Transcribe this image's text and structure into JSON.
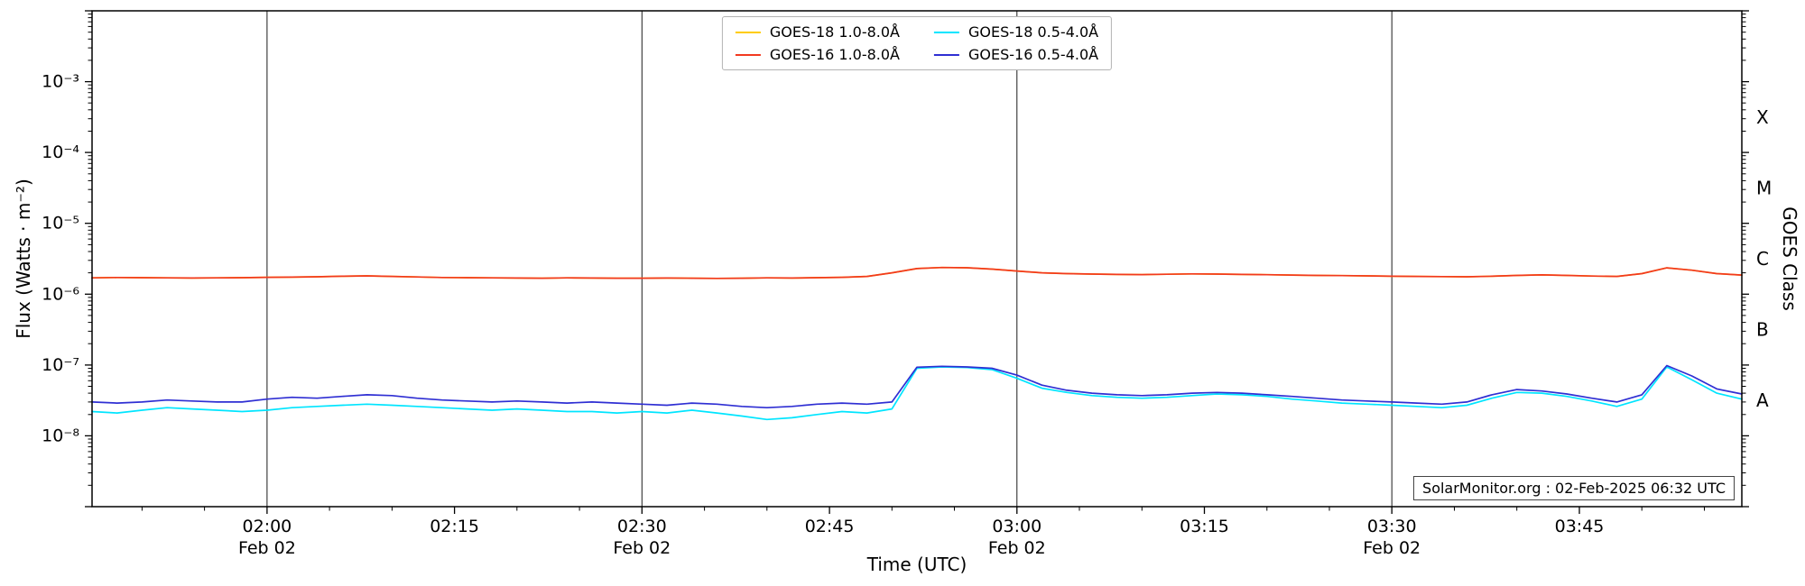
{
  "watermark": "SolarMonitor.org : 02-Feb-2025 06:32 UTC",
  "axes": {
    "xlabel": "Time (UTC)",
    "ylabel": "Flux (Watts · m⁻²)",
    "y2label": "GOES Class",
    "x_major_ticks": [
      {
        "t": 120,
        "label": "02:00",
        "sub": "Feb 02"
      },
      {
        "t": 135,
        "label": "02:15"
      },
      {
        "t": 150,
        "label": "02:30",
        "sub": "Feb 02"
      },
      {
        "t": 165,
        "label": "02:45"
      },
      {
        "t": 180,
        "label": "03:00",
        "sub": "Feb 02"
      },
      {
        "t": 195,
        "label": "03:15"
      },
      {
        "t": 210,
        "label": "03:30",
        "sub": "Feb 02"
      },
      {
        "t": 225,
        "label": "03:45"
      }
    ],
    "y_ticks": [
      {
        "v": 0.001,
        "label": "10⁻³"
      },
      {
        "v": 0.0001,
        "label": "10⁻⁴"
      },
      {
        "v": 1e-05,
        "label": "10⁻⁵"
      },
      {
        "v": 1e-06,
        "label": "10⁻⁶"
      },
      {
        "v": 1e-07,
        "label": "10⁻⁷"
      },
      {
        "v": 1e-08,
        "label": "10⁻⁸"
      }
    ],
    "class_labels": [
      {
        "label": "X",
        "v": 0.0003162
      },
      {
        "label": "M",
        "v": 3.162e-05
      },
      {
        "label": "C",
        "v": 3.162e-06
      },
      {
        "label": "B",
        "v": 3.162e-07
      },
      {
        "label": "A",
        "v": 3.162e-08
      }
    ]
  },
  "chart_data": {
    "type": "line",
    "yscale": "log",
    "xlim_minutes": [
      106,
      238
    ],
    "ylim": [
      1e-09,
      0.01
    ],
    "x_unit": "minutes-since-midnight-utc (02 Feb)",
    "gridlines_x_minutes": [
      120,
      150,
      180,
      210
    ],
    "x_minutes": [
      106,
      108,
      110,
      112,
      114,
      116,
      118,
      120,
      122,
      124,
      126,
      128,
      130,
      132,
      134,
      136,
      138,
      140,
      142,
      144,
      146,
      148,
      150,
      152,
      154,
      156,
      158,
      160,
      162,
      164,
      166,
      168,
      170,
      172,
      174,
      176,
      178,
      180,
      182,
      184,
      186,
      188,
      190,
      192,
      194,
      196,
      198,
      200,
      202,
      204,
      206,
      208,
      210,
      212,
      214,
      216,
      218,
      220,
      222,
      224,
      226,
      228,
      230,
      232,
      234,
      236,
      238
    ],
    "series": [
      {
        "name": "GOES-18 1.0-8.0Å",
        "color": "#ffcc00",
        "values": [
          1.7e-06,
          1.72e-06,
          1.71e-06,
          1.7e-06,
          1.69e-06,
          1.7e-06,
          1.71e-06,
          1.73e-06,
          1.74e-06,
          1.76e-06,
          1.79e-06,
          1.81e-06,
          1.78e-06,
          1.75e-06,
          1.72e-06,
          1.71e-06,
          1.7e-06,
          1.69e-06,
          1.68e-06,
          1.7e-06,
          1.69e-06,
          1.68e-06,
          1.68e-06,
          1.69e-06,
          1.68e-06,
          1.67e-06,
          1.68e-06,
          1.7e-06,
          1.69e-06,
          1.71e-06,
          1.73e-06,
          1.78e-06,
          2e-06,
          2.3e-06,
          2.38e-06,
          2.36e-06,
          2.26e-06,
          2.12e-06,
          2e-06,
          1.95e-06,
          1.92e-06,
          1.9e-06,
          1.89e-06,
          1.91e-06,
          1.93e-06,
          1.92e-06,
          1.9e-06,
          1.88e-06,
          1.86e-06,
          1.84e-06,
          1.83e-06,
          1.81e-06,
          1.79e-06,
          1.78e-06,
          1.77e-06,
          1.76e-06,
          1.79e-06,
          1.84e-06,
          1.87e-06,
          1.84e-06,
          1.8e-06,
          1.78e-06,
          1.95e-06,
          2.35e-06,
          2.18e-06,
          1.95e-06,
          1.86e-06
        ]
      },
      {
        "name": "GOES-16 1.0-8.0Å",
        "color": "#f2391f",
        "values": [
          1.7e-06,
          1.72e-06,
          1.71e-06,
          1.7e-06,
          1.69e-06,
          1.7e-06,
          1.71e-06,
          1.73e-06,
          1.74e-06,
          1.76e-06,
          1.79e-06,
          1.81e-06,
          1.78e-06,
          1.75e-06,
          1.72e-06,
          1.71e-06,
          1.7e-06,
          1.69e-06,
          1.68e-06,
          1.7e-06,
          1.69e-06,
          1.68e-06,
          1.68e-06,
          1.69e-06,
          1.68e-06,
          1.67e-06,
          1.68e-06,
          1.7e-06,
          1.69e-06,
          1.71e-06,
          1.73e-06,
          1.78e-06,
          2e-06,
          2.3e-06,
          2.38e-06,
          2.36e-06,
          2.26e-06,
          2.12e-06,
          2e-06,
          1.95e-06,
          1.92e-06,
          1.9e-06,
          1.89e-06,
          1.91e-06,
          1.93e-06,
          1.92e-06,
          1.9e-06,
          1.88e-06,
          1.86e-06,
          1.84e-06,
          1.83e-06,
          1.81e-06,
          1.79e-06,
          1.78e-06,
          1.77e-06,
          1.76e-06,
          1.79e-06,
          1.84e-06,
          1.87e-06,
          1.84e-06,
          1.8e-06,
          1.78e-06,
          1.95e-06,
          2.35e-06,
          2.18e-06,
          1.95e-06,
          1.86e-06
        ]
      },
      {
        "name": "GOES-18 0.5-4.0Å",
        "color": "#00e5ff",
        "values": [
          2.2e-08,
          2.1e-08,
          2.3e-08,
          2.5e-08,
          2.4e-08,
          2.3e-08,
          2.2e-08,
          2.3e-08,
          2.5e-08,
          2.6e-08,
          2.7e-08,
          2.8e-08,
          2.7e-08,
          2.6e-08,
          2.5e-08,
          2.4e-08,
          2.3e-08,
          2.4e-08,
          2.3e-08,
          2.2e-08,
          2.2e-08,
          2.1e-08,
          2.2e-08,
          2.1e-08,
          2.3e-08,
          2.1e-08,
          1.9e-08,
          1.7e-08,
          1.8e-08,
          2e-08,
          2.2e-08,
          2.1e-08,
          2.4e-08,
          9e-08,
          9.4e-08,
          9.2e-08,
          8.6e-08,
          6.5e-08,
          4.7e-08,
          4.1e-08,
          3.7e-08,
          3.5e-08,
          3.4e-08,
          3.5e-08,
          3.7e-08,
          3.9e-08,
          3.8e-08,
          3.6e-08,
          3.3e-08,
          3.1e-08,
          2.9e-08,
          2.8e-08,
          2.7e-08,
          2.6e-08,
          2.5e-08,
          2.7e-08,
          3.4e-08,
          4.1e-08,
          4e-08,
          3.6e-08,
          3.1e-08,
          2.6e-08,
          3.3e-08,
          9.4e-08,
          6.2e-08,
          4e-08,
          3.3e-08
        ]
      },
      {
        "name": "GOES-16 0.5-4.0Å",
        "color": "#2f2fd3",
        "values": [
          3e-08,
          2.9e-08,
          3e-08,
          3.2e-08,
          3.1e-08,
          3e-08,
          3e-08,
          3.3e-08,
          3.5e-08,
          3.4e-08,
          3.6e-08,
          3.8e-08,
          3.7e-08,
          3.4e-08,
          3.2e-08,
          3.1e-08,
          3e-08,
          3.1e-08,
          3e-08,
          2.9e-08,
          3e-08,
          2.9e-08,
          2.8e-08,
          2.7e-08,
          2.9e-08,
          2.8e-08,
          2.6e-08,
          2.5e-08,
          2.6e-08,
          2.8e-08,
          2.9e-08,
          2.8e-08,
          3e-08,
          9.3e-08,
          9.6e-08,
          9.4e-08,
          9e-08,
          7.2e-08,
          5.2e-08,
          4.4e-08,
          4e-08,
          3.8e-08,
          3.7e-08,
          3.8e-08,
          4e-08,
          4.1e-08,
          4e-08,
          3.8e-08,
          3.6e-08,
          3.4e-08,
          3.2e-08,
          3.1e-08,
          3e-08,
          2.9e-08,
          2.8e-08,
          3e-08,
          3.8e-08,
          4.5e-08,
          4.3e-08,
          3.9e-08,
          3.4e-08,
          3e-08,
          3.8e-08,
          9.8e-08,
          7e-08,
          4.6e-08,
          3.9e-08
        ]
      }
    ]
  }
}
